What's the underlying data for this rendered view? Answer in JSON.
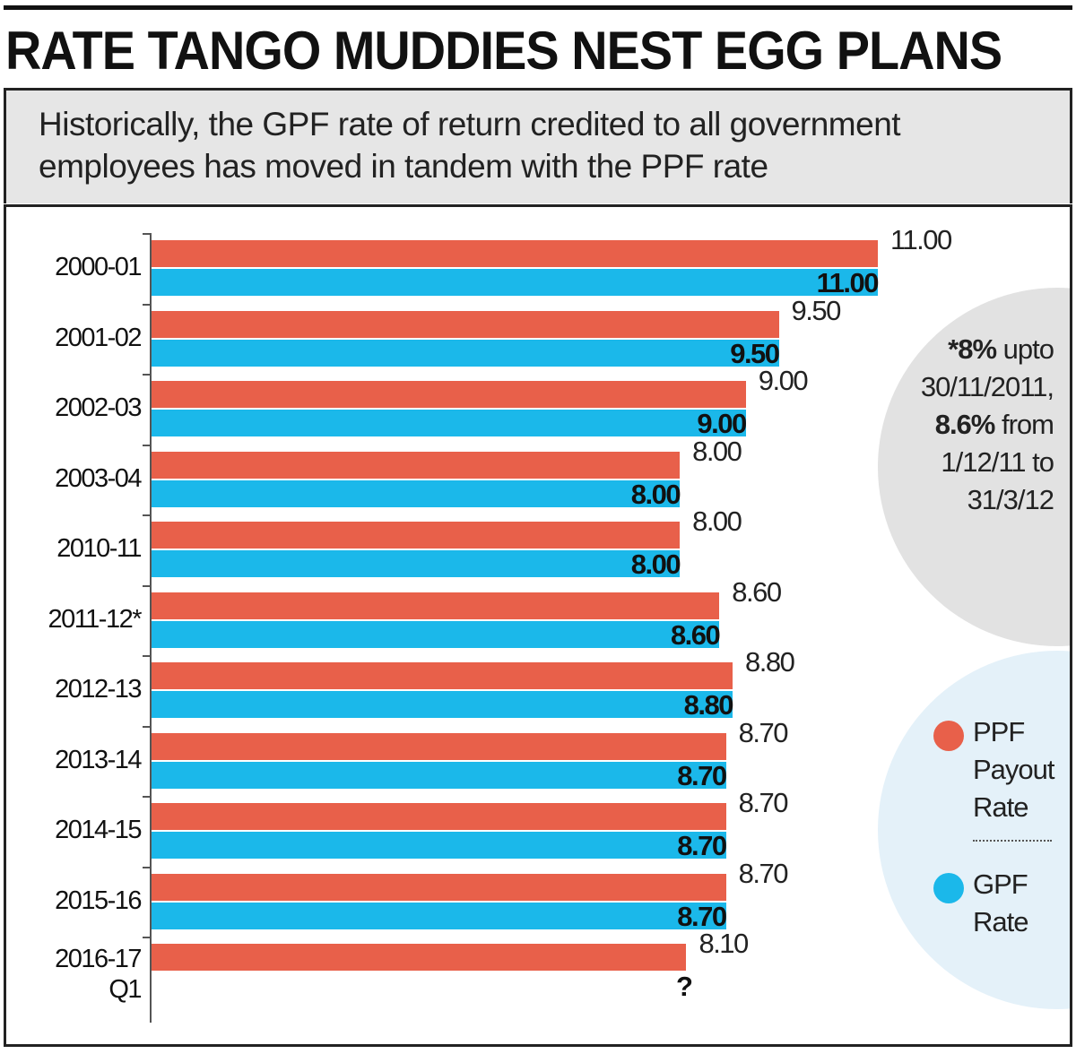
{
  "chart_data": {
    "type": "bar",
    "orientation": "horizontal",
    "title": "RATE TANGO MUDDIES NEST EGG PLANS",
    "subtitle": "Historically, the GPF rate of return credited to all government employees has moved in tandem with the PPF rate",
    "categories": [
      "2000-01",
      "2001-02",
      "2002-03",
      "2003-04",
      "2010-11",
      "2011-12*",
      "2012-13",
      "2013-14",
      "2014-15",
      "2015-16",
      "2016-17 Q1"
    ],
    "series": [
      {
        "name": "PPF Payout Rate",
        "color": "#e8604a",
        "values": [
          11,
          9.5,
          9,
          8,
          8,
          8.6,
          8.8,
          8.7,
          8.7,
          8.7,
          8.1
        ],
        "value_labels": [
          "11.00",
          "9.50",
          "9.00",
          "8.00",
          "8.00",
          "8.60",
          "8.80",
          "8.70",
          "8.70",
          "8.70",
          "8.10"
        ]
      },
      {
        "name": "GPF Rate",
        "color": "#1bb8ea",
        "values": [
          11,
          9.5,
          9,
          8,
          8,
          8.6,
          8.8,
          8.7,
          8.7,
          8.7,
          null
        ],
        "value_labels": [
          "11.00",
          "9.50",
          "9.00",
          "8.00",
          "8.00",
          "8.60",
          "8.80",
          "8.70",
          "8.70",
          "8.70",
          "?"
        ]
      }
    ],
    "annotation": [
      {
        "text": "*8%",
        "bold": true
      },
      {
        "text": " upto 30/11/2011, ",
        "bold": false
      },
      {
        "text": "8.6%",
        "bold": true
      },
      {
        "text": " from 1/12/11 to 31/3/12",
        "bold": false
      }
    ]
  }
}
